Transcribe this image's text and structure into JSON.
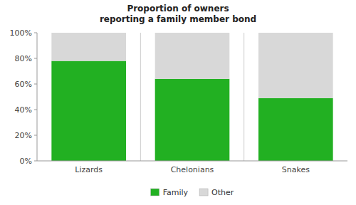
{
  "chart_data": {
    "type": "bar",
    "stacked": true,
    "title": "Proportion of owners\nreporting a family member bond",
    "categories": [
      "Lizards",
      "Chelonians",
      "Snakes"
    ],
    "series": [
      {
        "name": "Family",
        "color": "#22b022",
        "values": [
          0.78,
          0.64,
          0.49
        ]
      },
      {
        "name": "Other",
        "color": "#d8d8d8",
        "values": [
          0.22,
          0.36,
          0.51
        ]
      }
    ],
    "ylim": [
      0,
      1
    ],
    "yticks": [
      {
        "value": 0,
        "label": "0%"
      },
      {
        "value": 0.2,
        "label": "20%"
      },
      {
        "value": 0.4,
        "label": "40%"
      },
      {
        "value": 0.6,
        "label": "60%"
      },
      {
        "value": 0.8,
        "label": "80%"
      },
      {
        "value": 1.0,
        "label": "100%"
      }
    ],
    "grid": false,
    "legend": "bottom"
  }
}
